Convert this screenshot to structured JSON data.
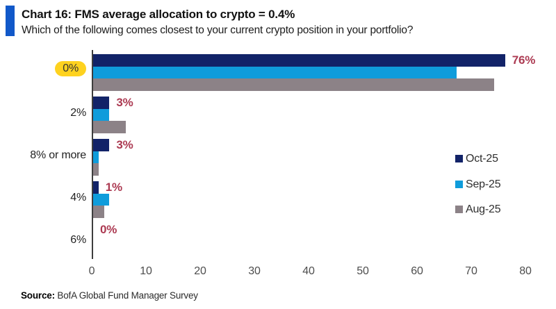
{
  "header": {
    "title": "Chart 16: FMS average allocation to crypto = 0.4%",
    "subtitle": "Which of the following comes closest to your current crypto position in your portfolio?",
    "accent_color": "#1158c9"
  },
  "chart_data": {
    "type": "bar",
    "orientation": "horizontal",
    "title": "Chart 16: FMS average allocation to crypto = 0.4%",
    "subtitle": "Which of the following comes closest to your current crypto position in your portfolio?",
    "categories": [
      "0%",
      "2%",
      "8% or more",
      "4%",
      "6%"
    ],
    "series": [
      {
        "name": "Oct-25",
        "color": "#122368",
        "values": [
          76,
          3,
          3,
          1,
          0
        ]
      },
      {
        "name": "Sep-25",
        "color": "#0f9cdb",
        "values": [
          67,
          3,
          1,
          3,
          0
        ]
      },
      {
        "name": "Aug-25",
        "color": "#8c8287",
        "values": [
          74,
          6,
          1,
          2,
          0
        ]
      }
    ],
    "value_labels": [
      "76%",
      "3%",
      "3%",
      "1%",
      "0%"
    ],
    "value_label_color": "#ac3a52",
    "highlighted_category": "0%",
    "highlight_color": "#fed21f",
    "x_ticks": [
      "0",
      "10",
      "20",
      "30",
      "40",
      "50",
      "60",
      "70",
      "80"
    ],
    "xlim": [
      0,
      80
    ],
    "grid": false,
    "legend_position": "right"
  },
  "source": {
    "label": "Source:",
    "text": " BofA Global Fund Manager Survey"
  }
}
